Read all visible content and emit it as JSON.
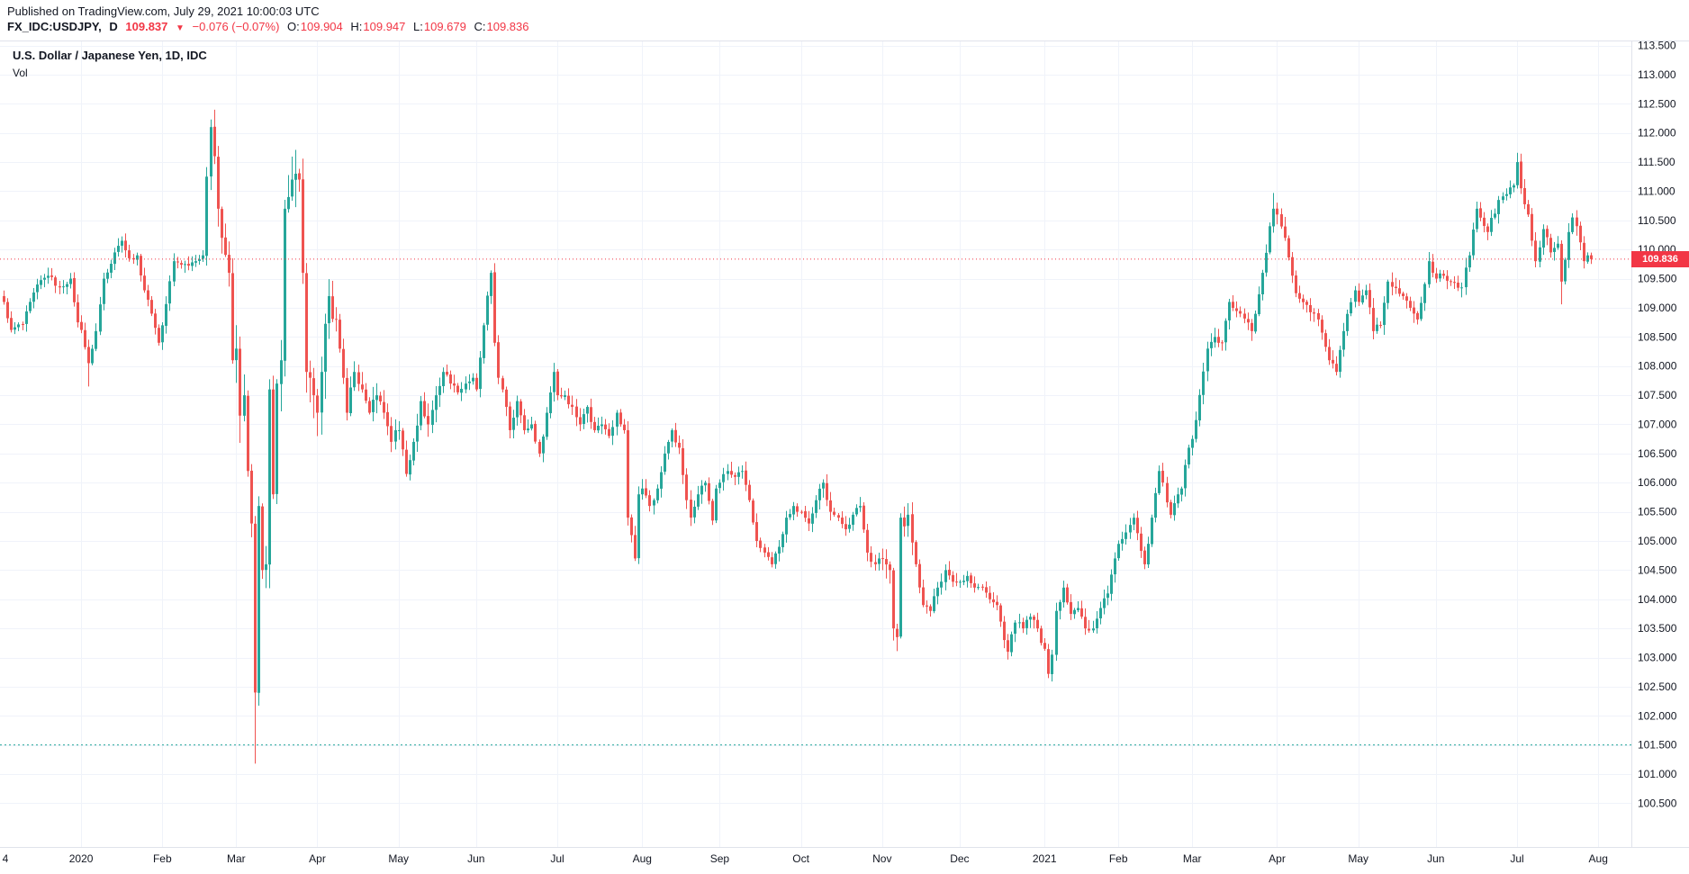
{
  "header": {
    "published_line": "Published on TradingView.com, July 29, 2021 10:00:03 UTC",
    "symbol": "FX_IDC:USDJPY,",
    "interval": "D",
    "last_price": "109.837",
    "direction_icon": "▼",
    "change": "−0.076 (−0.07%)",
    "ohlc": {
      "o_label": "O:",
      "o": "109.904",
      "h_label": "H:",
      "h": "109.947",
      "l_label": "L:",
      "l": "109.679",
      "c_label": "C:",
      "c": "109.836"
    }
  },
  "legend": {
    "title": "U.S. Dollar / Japanese Yen, 1D, IDC",
    "vol_label": "Vol"
  },
  "price_axis": {
    "badge": "109.836",
    "ticks": [
      "113.500",
      "113.000",
      "112.500",
      "112.000",
      "111.500",
      "111.000",
      "110.500",
      "110.000",
      "109.500",
      "109.000",
      "108.500",
      "108.000",
      "107.500",
      "107.000",
      "106.500",
      "106.000",
      "105.500",
      "105.000",
      "104.500",
      "104.000",
      "103.500",
      "103.000",
      "102.500",
      "102.000",
      "101.500",
      "101.000",
      "100.500"
    ]
  },
  "time_axis": {
    "left_partial_label": "4",
    "months": [
      {
        "label": "2020",
        "d": 21
      },
      {
        "label": "Feb",
        "d": 43
      },
      {
        "label": "Mar",
        "d": 63
      },
      {
        "label": "Apr",
        "d": 85
      },
      {
        "label": "May",
        "d": 107
      },
      {
        "label": "Jun",
        "d": 128
      },
      {
        "label": "Jul",
        "d": 150
      },
      {
        "label": "Aug",
        "d": 173
      },
      {
        "label": "Sep",
        "d": 194
      },
      {
        "label": "Oct",
        "d": 216
      },
      {
        "label": "Nov",
        "d": 238
      },
      {
        "label": "Dec",
        "d": 259
      },
      {
        "label": "2021",
        "d": 282
      },
      {
        "label": "Feb",
        "d": 302
      },
      {
        "label": "Mar",
        "d": 322
      },
      {
        "label": "Apr",
        "d": 345
      },
      {
        "label": "May",
        "d": 367
      },
      {
        "label": "Jun",
        "d": 388
      },
      {
        "label": "Jul",
        "d": 410
      },
      {
        "label": "Aug",
        "d": 432
      }
    ]
  },
  "colors": {
    "up": "#26a69a",
    "down": "#ef5350",
    "price_line": "#f23645",
    "level_line": "#26a69a",
    "grid": "#f0f3fa",
    "border": "#e0e3eb",
    "axis_text": "#131722"
  },
  "chart_data": {
    "type": "candlestick",
    "title": "U.S. Dollar / Japanese Yen, 1D, IDC",
    "symbol": "FX_IDC:USDJPY",
    "timeframe": "1D",
    "date_range": "Dec 2019 - Jul 29 2021",
    "ylim": [
      99.75,
      113.57
    ],
    "y_tick_step": 0.5,
    "num_candles": 431,
    "last_close": 109.836,
    "open_today": 109.904,
    "high_today": 109.947,
    "low_today": 109.679,
    "anchors": [
      [
        0,
        109.1
      ],
      [
        2,
        108.62
      ],
      [
        5,
        108.72
      ],
      [
        9,
        109.4
      ],
      [
        12,
        109.55
      ],
      [
        15,
        109.35
      ],
      [
        18,
        109.5
      ],
      [
        20,
        108.75
      ],
      [
        21,
        108.62
      ],
      [
        23,
        108.05
      ],
      [
        25,
        108.6
      ],
      [
        27,
        109.5
      ],
      [
        30,
        109.95
      ],
      [
        32,
        110.15
      ],
      [
        34,
        109.85
      ],
      [
        36,
        109.9
      ],
      [
        38,
        109.3
      ],
      [
        40,
        108.9
      ],
      [
        42,
        108.4
      ],
      [
        43,
        108.7
      ],
      [
        46,
        109.8
      ],
      [
        49,
        109.75
      ],
      [
        52,
        109.8
      ],
      [
        54,
        109.9
      ],
      [
        55,
        111.25
      ],
      [
        56,
        112.1
      ],
      [
        57,
        111.6
      ],
      [
        58,
        110.7
      ],
      [
        59,
        110.2
      ],
      [
        61,
        109.6
      ],
      [
        62,
        108.1
      ],
      [
        63,
        108.3
      ],
      [
        64,
        107.15
      ],
      [
        65,
        107.5
      ],
      [
        66,
        106.2
      ],
      [
        67,
        105.3
      ],
      [
        68,
        102.4
      ],
      [
        69,
        105.6
      ],
      [
        70,
        104.5
      ],
      [
        71,
        104.6
      ],
      [
        72,
        107.6
      ],
      [
        73,
        105.8
      ],
      [
        74,
        107.7
      ],
      [
        75,
        108.1
      ],
      [
        76,
        110.7
      ],
      [
        77,
        110.9
      ],
      [
        78,
        111.2
      ],
      [
        79,
        111.3
      ],
      [
        80,
        111.2
      ],
      [
        81,
        109.6
      ],
      [
        82,
        107.9
      ],
      [
        83,
        107.8
      ],
      [
        84,
        107.5
      ],
      [
        85,
        107.2
      ],
      [
        86,
        107.9
      ],
      [
        88,
        109.2
      ],
      [
        90,
        108.8
      ],
      [
        92,
        107.8
      ],
      [
        93,
        107.2
      ],
      [
        95,
        107.9
      ],
      [
        97,
        107.6
      ],
      [
        99,
        107.2
      ],
      [
        101,
        107.5
      ],
      [
        103,
        107.2
      ],
      [
        105,
        106.7
      ],
      [
        106,
        106.9
      ],
      [
        107,
        106.9
      ],
      [
        109,
        106.15
      ],
      [
        111,
        106.7
      ],
      [
        113,
        107.4
      ],
      [
        115,
        107.0
      ],
      [
        117,
        107.5
      ],
      [
        119,
        107.9
      ],
      [
        121,
        107.7
      ],
      [
        123,
        107.55
      ],
      [
        125,
        107.7
      ],
      [
        127,
        107.8
      ],
      [
        128,
        107.6
      ],
      [
        130,
        108.7
      ],
      [
        132,
        109.6
      ],
      [
        133,
        108.4
      ],
      [
        134,
        107.8
      ],
      [
        136,
        107.3
      ],
      [
        137,
        106.9
      ],
      [
        139,
        107.4
      ],
      [
        141,
        106.9
      ],
      [
        143,
        107.0
      ],
      [
        145,
        106.5
      ],
      [
        147,
        107.2
      ],
      [
        149,
        107.9
      ],
      [
        150,
        107.5
      ],
      [
        152,
        107.5
      ],
      [
        154,
        107.3
      ],
      [
        156,
        107.0
      ],
      [
        158,
        107.3
      ],
      [
        160,
        106.9
      ],
      [
        162,
        107.0
      ],
      [
        164,
        106.8
      ],
      [
        166,
        107.2
      ],
      [
        168,
        106.9
      ],
      [
        169,
        105.4
      ],
      [
        170,
        105.1
      ],
      [
        171,
        104.7
      ],
      [
        172,
        105.8
      ],
      [
        173,
        105.9
      ],
      [
        175,
        105.6
      ],
      [
        177,
        105.9
      ],
      [
        179,
        106.5
      ],
      [
        181,
        106.9
      ],
      [
        183,
        106.6
      ],
      [
        185,
        105.7
      ],
      [
        186,
        105.4
      ],
      [
        188,
        105.8
      ],
      [
        190,
        106.0
      ],
      [
        192,
        105.35
      ],
      [
        193,
        105.9
      ],
      [
        194,
        106.0
      ],
      [
        196,
        106.2
      ],
      [
        198,
        106.1
      ],
      [
        200,
        106.2
      ],
      [
        202,
        105.7
      ],
      [
        204,
        105.0
      ],
      [
        206,
        104.8
      ],
      [
        208,
        104.6
      ],
      [
        210,
        104.9
      ],
      [
        212,
        105.4
      ],
      [
        214,
        105.6
      ],
      [
        215,
        105.5
      ],
      [
        216,
        105.5
      ],
      [
        218,
        105.3
      ],
      [
        220,
        105.7
      ],
      [
        222,
        106.0
      ],
      [
        224,
        105.5
      ],
      [
        226,
        105.4
      ],
      [
        228,
        105.2
      ],
      [
        230,
        105.45
      ],
      [
        232,
        105.6
      ],
      [
        234,
        104.8
      ],
      [
        236,
        104.6
      ],
      [
        237,
        104.7
      ],
      [
        238,
        104.7
      ],
      [
        240,
        104.5
      ],
      [
        241,
        103.5
      ],
      [
        242,
        103.35
      ],
      [
        243,
        105.4
      ],
      [
        244,
        105.25
      ],
      [
        245,
        105.45
      ],
      [
        247,
        104.6
      ],
      [
        249,
        103.9
      ],
      [
        251,
        103.8
      ],
      [
        253,
        104.2
      ],
      [
        255,
        104.5
      ],
      [
        257,
        104.3
      ],
      [
        258,
        104.3
      ],
      [
        259,
        104.3
      ],
      [
        261,
        104.4
      ],
      [
        263,
        104.2
      ],
      [
        265,
        104.2
      ],
      [
        267,
        104.0
      ],
      [
        269,
        103.9
      ],
      [
        271,
        103.3
      ],
      [
        272,
        103.1
      ],
      [
        274,
        103.6
      ],
      [
        276,
        103.5
      ],
      [
        278,
        103.7
      ],
      [
        280,
        103.5
      ],
      [
        281,
        103.25
      ],
      [
        282,
        103.15
      ],
      [
        283,
        102.72
      ],
      [
        284,
        103.05
      ],
      [
        285,
        103.8
      ],
      [
        286,
        103.95
      ],
      [
        287,
        104.2
      ],
      [
        289,
        103.75
      ],
      [
        291,
        103.85
      ],
      [
        293,
        103.5
      ],
      [
        295,
        103.5
      ],
      [
        297,
        103.85
      ],
      [
        299,
        104.1
      ],
      [
        301,
        104.7
      ],
      [
        302,
        104.95
      ],
      [
        306,
        105.4
      ],
      [
        309,
        104.6
      ],
      [
        311,
        105.4
      ],
      [
        313,
        106.2
      ],
      [
        316,
        105.45
      ],
      [
        319,
        105.9
      ],
      [
        321,
        106.6
      ],
      [
        322,
        106.75
      ],
      [
        326,
        108.3
      ],
      [
        328,
        108.5
      ],
      [
        330,
        108.4
      ],
      [
        332,
        109.1
      ],
      [
        335,
        108.9
      ],
      [
        338,
        108.6
      ],
      [
        341,
        109.6
      ],
      [
        343,
        110.4
      ],
      [
        344,
        110.7
      ],
      [
        345,
        110.6
      ],
      [
        347,
        110.2
      ],
      [
        350,
        109.25
      ],
      [
        353,
        109.05
      ],
      [
        356,
        108.8
      ],
      [
        359,
        108.1
      ],
      [
        361,
        107.9
      ],
      [
        363,
        108.6
      ],
      [
        366,
        109.3
      ],
      [
        367,
        109.1
      ],
      [
        369,
        109.3
      ],
      [
        371,
        108.6
      ],
      [
        373,
        108.7
      ],
      [
        375,
        109.45
      ],
      [
        379,
        109.2
      ],
      [
        381,
        109.0
      ],
      [
        383,
        108.8
      ],
      [
        386,
        109.8
      ],
      [
        387,
        109.6
      ],
      [
        388,
        109.5
      ],
      [
        390,
        109.55
      ],
      [
        392,
        109.45
      ],
      [
        395,
        109.35
      ],
      [
        397,
        109.9
      ],
      [
        399,
        110.7
      ],
      [
        402,
        110.3
      ],
      [
        405,
        110.85
      ],
      [
        407,
        110.95
      ],
      [
        409,
        111.1
      ],
      [
        410,
        111.5
      ],
      [
        411,
        111.05
      ],
      [
        413,
        110.6
      ],
      [
        415,
        109.8
      ],
      [
        417,
        110.35
      ],
      [
        419,
        109.95
      ],
      [
        421,
        110.1
      ],
      [
        422,
        109.45
      ],
      [
        424,
        110.3
      ],
      [
        425,
        110.55
      ],
      [
        426,
        110.4
      ],
      [
        428,
        109.8
      ],
      [
        429,
        109.9
      ],
      [
        430,
        109.836
      ]
    ],
    "wick_overrides": [
      {
        "d": 23,
        "low": 107.65
      },
      {
        "d": 56,
        "high": 112.23
      },
      {
        "d": 68,
        "low": 101.18
      },
      {
        "d": 79,
        "high": 111.71
      },
      {
        "d": 284,
        "low": 102.59
      },
      {
        "d": 344,
        "high": 110.97
      },
      {
        "d": 410,
        "high": 111.66
      },
      {
        "d": 422,
        "low": 109.06
      }
    ],
    "noise_amp": [
      {
        "from": 0,
        "to": 54,
        "amp": 0.05
      },
      {
        "from": 55,
        "to": 62,
        "amp": 0.13
      },
      {
        "from": 63,
        "to": 90,
        "amp": 0.2
      },
      {
        "from": 91,
        "to": 120,
        "amp": 0.09
      },
      {
        "from": 121,
        "to": 237,
        "amp": 0.06
      },
      {
        "from": 238,
        "to": 246,
        "amp": 0.1
      },
      {
        "from": 247,
        "to": 321,
        "amp": 0.055
      },
      {
        "from": 322,
        "to": 430,
        "amp": 0.065
      }
    ],
    "horizontal_lines": [
      {
        "price": 109.836,
        "color": "#f23645",
        "dash": "1,3",
        "badge": "109.836",
        "name": "current-price-line"
      },
      {
        "price": 101.5,
        "color": "#26a69a",
        "dash": "2,3",
        "name": "teal-level-line"
      }
    ]
  }
}
